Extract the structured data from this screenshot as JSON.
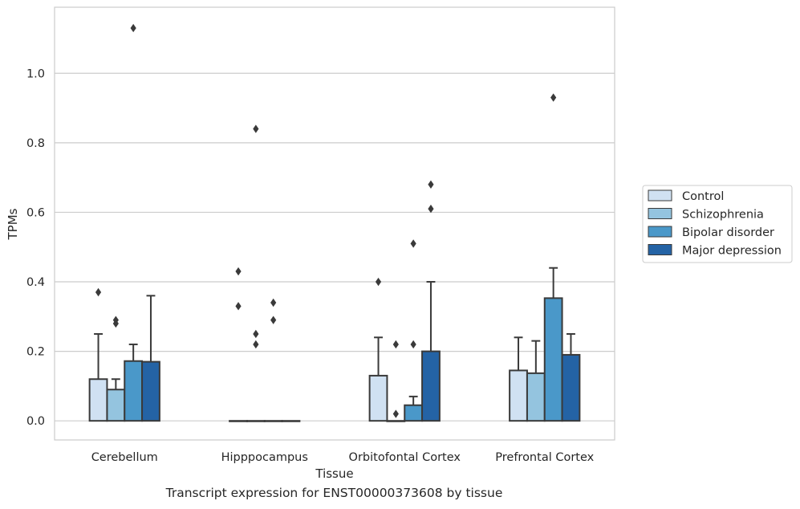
{
  "caption": "Transcript expression for ENST00000373608 by tissue",
  "chart_data": {
    "type": "bar",
    "xlabel": "Tissue",
    "ylabel": "TPMs",
    "ylim": [
      -0.055,
      1.19
    ],
    "yticks": [
      0.0,
      0.2,
      0.4,
      0.6,
      0.8,
      1.0
    ],
    "ytick_labels": [
      "0.0",
      "0.2",
      "0.4",
      "0.6",
      "0.8",
      "1.0"
    ],
    "grid": "horizontal",
    "legend_position": "right, outside plot",
    "categories": [
      "Cerebellum",
      "Hipppocampus",
      "Orbitofontal Cortex",
      "Prefrontal Cortex"
    ],
    "series": [
      {
        "name": "Control",
        "color": "#d0e1f2",
        "values": [
          0.12,
          0.0,
          0.13,
          0.145
        ],
        "error_upper": [
          0.25,
          0.0,
          0.24,
          0.24
        ],
        "outliers": [
          [
            0.37
          ],
          [
            0.43,
            0.33
          ],
          [
            0.4
          ],
          []
        ]
      },
      {
        "name": "Schizophrenia",
        "color": "#94c4df",
        "values": [
          0.09,
          0.0,
          0.0,
          0.137
        ],
        "error_upper": [
          0.12,
          0.0,
          0.0,
          0.23
        ],
        "outliers": [
          [
            0.29,
            0.28
          ],
          [
            0.84,
            0.25,
            0.22
          ],
          [
            0.22,
            0.02
          ],
          []
        ]
      },
      {
        "name": "Bipolar disorder",
        "color": "#4a98c9",
        "values": [
          0.172,
          0.0,
          0.045,
          0.353
        ],
        "error_upper": [
          0.22,
          0.0,
          0.07,
          0.44
        ],
        "outliers": [
          [
            1.13
          ],
          [
            0.34,
            0.29
          ],
          [
            0.51,
            0.22
          ],
          [
            0.93
          ]
        ]
      },
      {
        "name": "Major depression",
        "color": "#2463a5",
        "values": [
          0.17,
          0.0,
          0.2,
          0.19
        ],
        "error_upper": [
          0.36,
          0.0,
          0.4,
          0.25
        ],
        "outliers": [
          [],
          [],
          [
            0.68,
            0.61
          ],
          []
        ]
      }
    ]
  }
}
